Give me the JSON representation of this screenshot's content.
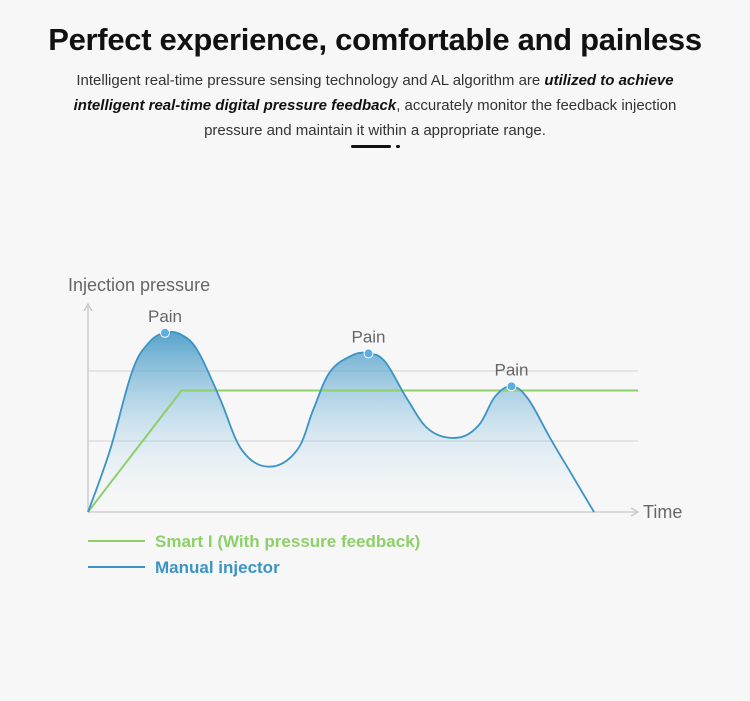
{
  "header": {
    "title": "Perfect experience, comfortable and painless",
    "description_part1": "Intelligent real-time pressure sensing technology and AL algorithm are ",
    "description_emphasis": "utilized to achieve intelligent real-time digital pressure feedback",
    "description_part2": ", accurately monitor the feedback injection pressure and maintain it within a appropriate range."
  },
  "colors": {
    "smart": "#8fcf6a",
    "manual": "#3b94c4",
    "axis": "#c8c8c8",
    "grid": "#d9d9d9",
    "label": "#666666",
    "dot": "#5aaee0"
  },
  "chart_data": {
    "type": "line",
    "xlabel": "Time",
    "ylabel": "Injection pressure",
    "grid": true,
    "legend_position": "bottom-left",
    "x_range": [
      0,
      100
    ],
    "y_range": [
      0,
      100
    ],
    "series": [
      {
        "name": "Smart I (With pressure feedback)",
        "key": "smart",
        "points": [
          [
            0,
            0
          ],
          [
            17,
            59
          ],
          [
            100,
            59
          ]
        ]
      },
      {
        "name": "Manual injector",
        "key": "manual",
        "points": [
          [
            0,
            0
          ],
          [
            4,
            30
          ],
          [
            8,
            68
          ],
          [
            11,
            82
          ],
          [
            14,
            87
          ],
          [
            17,
            86
          ],
          [
            20,
            78
          ],
          [
            24,
            55
          ],
          [
            28,
            30
          ],
          [
            33,
            22
          ],
          [
            38,
            30
          ],
          [
            41,
            50
          ],
          [
            44,
            68
          ],
          [
            48,
            76
          ],
          [
            51,
            77
          ],
          [
            54,
            73
          ],
          [
            58,
            55
          ],
          [
            62,
            40
          ],
          [
            67,
            36
          ],
          [
            71,
            42
          ],
          [
            74,
            56
          ],
          [
            77,
            61
          ],
          [
            80,
            55
          ],
          [
            84,
            36
          ],
          [
            88,
            18
          ],
          [
            92,
            0
          ]
        ]
      }
    ],
    "annotations": [
      {
        "text": "Pain",
        "x": 14,
        "y": 87
      },
      {
        "text": "Pain",
        "x": 51,
        "y": 77
      },
      {
        "text": "Pain",
        "x": 77,
        "y": 61
      }
    ]
  }
}
